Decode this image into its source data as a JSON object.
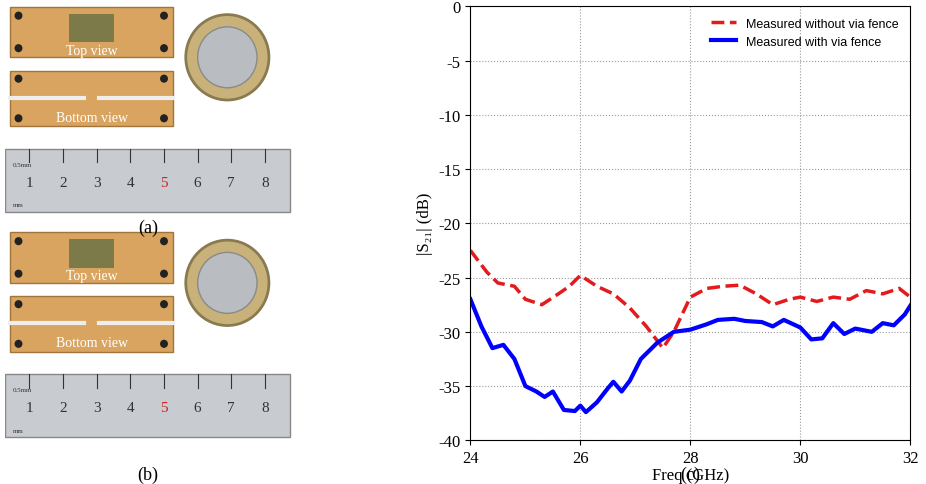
{
  "photos": [
    {
      "caption": "(a)",
      "top_label": "Top view",
      "bottom_label": "Bottom view",
      "ruler_numbers": [
        1,
        2,
        3,
        4,
        5,
        6,
        7,
        8
      ],
      "ruler_units": [
        "0.5mm",
        "mm"
      ]
    },
    {
      "caption": "(b)",
      "top_label": "Top view",
      "bottom_label": "Bottom view",
      "ruler_numbers": [
        1,
        2,
        3,
        4,
        5,
        6,
        7,
        8
      ],
      "ruler_units": [
        "0.5mm",
        "mm"
      ]
    }
  ],
  "chart_data": {
    "type": "line",
    "caption": "(c)",
    "x_label": "Freq (GHz)",
    "y_label": "|S₂₁| (dB)",
    "xlim": [
      24,
      32
    ],
    "xticks": [
      24,
      26,
      28,
      30,
      32
    ],
    "ylim": [
      -40,
      0
    ],
    "yticks": [
      -40,
      -35,
      -30,
      -25,
      -20,
      -15,
      -10,
      -5,
      0
    ],
    "grid": true,
    "legend": "upper right",
    "series": [
      {
        "name": "Measured without via fence",
        "color": "#e41a1c",
        "line_style": "dashed",
        "x": [
          24.0,
          24.3,
          24.5,
          24.8,
          25.0,
          25.3,
          25.6,
          25.8,
          26.0,
          26.3,
          26.6,
          26.9,
          27.2,
          27.5,
          27.7,
          28.0,
          28.3,
          28.6,
          28.9,
          29.2,
          29.5,
          29.8,
          30.0,
          30.3,
          30.6,
          30.9,
          31.2,
          31.5,
          31.8,
          32.0
        ],
        "values": [
          -22.5,
          -24.5,
          -25.5,
          -25.8,
          -27.0,
          -27.5,
          -26.5,
          -25.8,
          -24.8,
          -25.8,
          -26.5,
          -27.8,
          -29.5,
          -31.5,
          -30.0,
          -26.8,
          -26.0,
          -25.8,
          -25.7,
          -26.5,
          -27.5,
          -27.0,
          -26.8,
          -27.2,
          -26.8,
          -27.0,
          -26.2,
          -26.5,
          -26.0,
          -26.8
        ]
      },
      {
        "name": "Measured with via fence",
        "color": "#0000ff",
        "line_style": "solid",
        "x": [
          24.0,
          24.2,
          24.4,
          24.6,
          24.8,
          25.0,
          25.2,
          25.35,
          25.5,
          25.7,
          25.9,
          26.0,
          26.1,
          26.3,
          26.5,
          26.6,
          26.75,
          26.9,
          27.1,
          27.4,
          27.7,
          28.0,
          28.3,
          28.5,
          28.8,
          29.0,
          29.3,
          29.5,
          29.7,
          30.0,
          30.2,
          30.4,
          30.6,
          30.8,
          31.0,
          31.3,
          31.5,
          31.7,
          31.9,
          32.0
        ],
        "values": [
          -27.0,
          -29.5,
          -31.5,
          -31.2,
          -32.5,
          -35.0,
          -35.5,
          -36.0,
          -35.5,
          -37.2,
          -37.3,
          -36.8,
          -37.4,
          -36.5,
          -35.2,
          -34.6,
          -35.5,
          -34.5,
          -32.5,
          -31.0,
          -30.0,
          -29.8,
          -29.3,
          -28.9,
          -28.8,
          -29.0,
          -29.1,
          -29.5,
          -28.9,
          -29.6,
          -30.7,
          -30.6,
          -29.2,
          -30.2,
          -29.7,
          -30.0,
          -29.2,
          -29.4,
          -28.4,
          -27.6
        ]
      }
    ]
  }
}
